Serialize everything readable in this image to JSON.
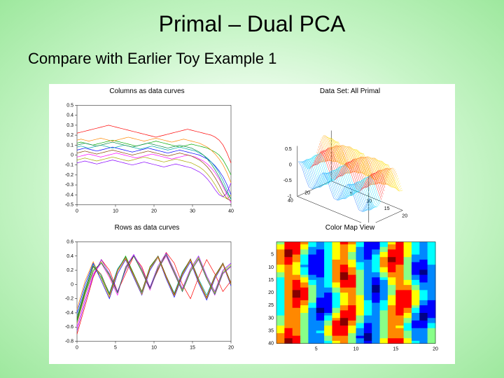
{
  "title": "Primal – Dual PCA",
  "subtitle": "Compare with Earlier Toy Example 1",
  "background": {
    "gradient_center": "#ffffff",
    "gradient_mid": "#c8f5c8",
    "gradient_edge": "#9ee89e"
  },
  "panels": {
    "columns": {
      "title": "Columns as data curves",
      "type": "line",
      "xlim": [
        0,
        40
      ],
      "ylim": [
        -0.5,
        0.5
      ],
      "xticks": [
        0,
        10,
        20,
        30,
        40
      ],
      "yticks": [
        -0.5,
        -0.4,
        -0.3,
        -0.2,
        -0.1,
        0,
        0.1,
        0.2,
        0.3,
        0.4,
        0.5
      ],
      "line_colors": [
        "#ff0000",
        "#00aa00",
        "#0000ff",
        "#ff00ff",
        "#00aaaa",
        "#aaaa00",
        "#ff8800",
        "#8800ff",
        "#884400",
        "#008844",
        "#cc0044",
        "#4400cc",
        "#00cc88",
        "#cc8800",
        "#666666",
        "#aa00aa",
        "#0088cc",
        "#88cc00",
        "#cc4400",
        "#4488cc"
      ],
      "line_width": 0.7,
      "series": [
        [
          0.22,
          0.23,
          0.24,
          0.25,
          0.26,
          0.27,
          0.28,
          0.29,
          0.3,
          0.29,
          0.28,
          0.27,
          0.26,
          0.25,
          0.24,
          0.23,
          0.22,
          0.21,
          0.2,
          0.19,
          0.18,
          0.19,
          0.2,
          0.21,
          0.22,
          0.23,
          0.24,
          0.25,
          0.26,
          0.25,
          0.24,
          0.23,
          0.22,
          0.21,
          0.2,
          0.18,
          0.15,
          0.1,
          0.02,
          -0.08
        ],
        [
          0.12,
          0.13,
          0.12,
          0.11,
          0.1,
          0.11,
          0.12,
          0.13,
          0.14,
          0.15,
          0.14,
          0.13,
          0.12,
          0.11,
          0.1,
          0.09,
          0.1,
          0.11,
          0.12,
          0.13,
          0.14,
          0.13,
          0.12,
          0.11,
          0.1,
          0.09,
          0.08,
          0.09,
          0.1,
          0.11,
          0.1,
          0.09,
          0.08,
          0.07,
          0.05,
          0.03,
          0.0,
          -0.05,
          -0.12,
          -0.2
        ],
        [
          0.05,
          0.06,
          0.07,
          0.06,
          0.05,
          0.04,
          0.05,
          0.06,
          0.07,
          0.08,
          0.07,
          0.06,
          0.05,
          0.04,
          0.03,
          0.04,
          0.05,
          0.06,
          0.07,
          0.06,
          0.05,
          0.04,
          0.03,
          0.02,
          0.03,
          0.04,
          0.05,
          0.04,
          0.03,
          0.02,
          0.01,
          0.0,
          -0.02,
          -0.04,
          -0.07,
          -0.11,
          -0.16,
          -0.22,
          -0.3,
          -0.4
        ],
        [
          -0.02,
          -0.01,
          0.0,
          0.01,
          0.0,
          -0.01,
          -0.02,
          -0.01,
          0.0,
          0.01,
          0.02,
          0.01,
          0.0,
          -0.01,
          -0.02,
          -0.03,
          -0.02,
          -0.01,
          0.0,
          0.01,
          0.0,
          -0.01,
          -0.02,
          -0.03,
          -0.04,
          -0.03,
          -0.02,
          -0.01,
          0.0,
          -0.01,
          -0.02,
          -0.04,
          -0.06,
          -0.09,
          -0.13,
          -0.18,
          -0.24,
          -0.32,
          -0.4,
          -0.48
        ],
        [
          0.08,
          0.09,
          0.08,
          0.07,
          0.08,
          0.09,
          0.1,
          0.09,
          0.08,
          0.07,
          0.08,
          0.09,
          0.1,
          0.09,
          0.08,
          0.07,
          0.06,
          0.07,
          0.08,
          0.09,
          0.08,
          0.07,
          0.06,
          0.05,
          0.06,
          0.07,
          0.08,
          0.07,
          0.06,
          0.05,
          0.04,
          0.02,
          0.0,
          -0.03,
          -0.07,
          -0.12,
          -0.18,
          -0.26,
          -0.35,
          -0.45
        ],
        [
          -0.05,
          -0.04,
          -0.03,
          -0.04,
          -0.05,
          -0.06,
          -0.05,
          -0.04,
          -0.03,
          -0.02,
          -0.03,
          -0.04,
          -0.05,
          -0.06,
          -0.05,
          -0.04,
          -0.03,
          -0.02,
          -0.03,
          -0.04,
          -0.05,
          -0.06,
          -0.07,
          -0.06,
          -0.05,
          -0.04,
          -0.05,
          -0.06,
          -0.07,
          -0.08,
          -0.1,
          -0.12,
          -0.15,
          -0.19,
          -0.24,
          -0.3,
          -0.37,
          -0.42,
          -0.44,
          -0.4
        ],
        [
          0.15,
          0.16,
          0.15,
          0.14,
          0.15,
          0.16,
          0.17,
          0.16,
          0.15,
          0.14,
          0.15,
          0.16,
          0.17,
          0.18,
          0.17,
          0.16,
          0.15,
          0.14,
          0.15,
          0.16,
          0.17,
          0.16,
          0.15,
          0.14,
          0.13,
          0.14,
          0.15,
          0.16,
          0.15,
          0.14,
          0.13,
          0.12,
          0.1,
          0.08,
          0.05,
          0.01,
          -0.04,
          -0.1,
          -0.18,
          -0.28
        ],
        [
          -0.08,
          -0.07,
          -0.06,
          -0.07,
          -0.08,
          -0.09,
          -0.08,
          -0.07,
          -0.06,
          -0.05,
          -0.06,
          -0.07,
          -0.08,
          -0.09,
          -0.1,
          -0.09,
          -0.08,
          -0.07,
          -0.08,
          -0.09,
          -0.1,
          -0.11,
          -0.12,
          -0.11,
          -0.1,
          -0.09,
          -0.1,
          -0.11,
          -0.12,
          -0.13,
          -0.15,
          -0.17,
          -0.2,
          -0.24,
          -0.29,
          -0.35,
          -0.4,
          -0.42,
          -0.38,
          -0.28
        ],
        [
          0.02,
          0.03,
          0.04,
          0.03,
          0.02,
          0.01,
          0.02,
          0.03,
          0.04,
          0.05,
          0.04,
          0.03,
          0.02,
          0.01,
          0.0,
          0.01,
          0.02,
          0.03,
          0.04,
          0.03,
          0.02,
          0.01,
          0.0,
          -0.01,
          0.0,
          0.01,
          0.02,
          0.01,
          0.0,
          -0.01,
          -0.03,
          -0.05,
          -0.08,
          -0.12,
          -0.17,
          -0.23,
          -0.3,
          -0.38,
          -0.44,
          -0.46
        ],
        [
          0.1,
          0.11,
          0.12,
          0.11,
          0.1,
          0.09,
          0.1,
          0.11,
          0.12,
          0.13,
          0.12,
          0.11,
          0.1,
          0.09,
          0.08,
          0.09,
          0.1,
          0.11,
          0.12,
          0.11,
          0.1,
          0.09,
          0.08,
          0.07,
          0.08,
          0.09,
          0.1,
          0.09,
          0.08,
          0.07,
          0.05,
          0.03,
          0.0,
          -0.04,
          -0.09,
          -0.15,
          -0.22,
          -0.3,
          -0.38,
          -0.44
        ]
      ]
    },
    "primal3d": {
      "title": "Data Set: All Primal",
      "type": "surface3d",
      "zticks": [
        -1,
        -0.5,
        0,
        0.5
      ],
      "xticks": [
        5,
        10,
        15,
        20
      ],
      "yticks": [
        20,
        40
      ],
      "surface_colors": [
        "#ffdd00",
        "#ffaa00",
        "#ff6600",
        "#ff0000",
        "#00ddff",
        "#00aaff",
        "#0066ff"
      ],
      "line_width": 0.4
    },
    "rows": {
      "title": "Rows as data curves",
      "type": "line",
      "xlim": [
        0,
        20
      ],
      "ylim": [
        -0.8,
        0.6
      ],
      "xticks": [
        0,
        5,
        10,
        15,
        20
      ],
      "yticks": [
        -0.8,
        -0.6,
        -0.4,
        -0.2,
        0,
        0.2,
        0.4,
        0.6
      ],
      "line_colors": [
        "#ff0000",
        "#00aa00",
        "#0000ff",
        "#ff00ff",
        "#00aaaa",
        "#aaaa00",
        "#ff8800",
        "#8800ff",
        "#884400",
        "#008844",
        "#cc0044",
        "#4400cc",
        "#00cc88",
        "#cc8800",
        "#666666",
        "#aa00aa",
        "#0088cc",
        "#88cc00",
        "#cc4400",
        "#4488cc"
      ],
      "line_width": 0.7,
      "series": [
        [
          -0.7,
          -0.3,
          0.1,
          0.35,
          0.2,
          -0.1,
          0.15,
          0.4,
          0.25,
          -0.05,
          0.2,
          0.45,
          0.3,
          0.0,
          -0.2,
          0.1,
          0.35,
          0.15,
          -0.1,
          0.05
        ],
        [
          -0.5,
          -0.1,
          0.25,
          0.1,
          -0.15,
          0.2,
          0.4,
          0.15,
          -0.1,
          0.25,
          0.4,
          0.1,
          -0.15,
          0.15,
          0.35,
          0.05,
          -0.2,
          0.1,
          0.3,
          0.0
        ],
        [
          -0.4,
          0.0,
          0.3,
          0.05,
          -0.2,
          0.15,
          0.35,
          0.1,
          -0.15,
          0.2,
          0.38,
          0.08,
          -0.18,
          0.12,
          0.32,
          0.02,
          -0.22,
          0.08,
          0.28,
          -0.02
        ],
        [
          -0.6,
          -0.2,
          0.15,
          0.3,
          0.1,
          -0.15,
          0.25,
          0.42,
          0.18,
          -0.08,
          0.22,
          0.4,
          0.15,
          -0.1,
          0.18,
          0.35,
          0.08,
          -0.15,
          0.15,
          0.25
        ],
        [
          -0.45,
          -0.05,
          0.28,
          0.12,
          -0.12,
          0.22,
          0.38,
          0.12,
          -0.12,
          0.22,
          0.4,
          0.12,
          -0.12,
          0.18,
          0.35,
          0.08,
          -0.15,
          0.12,
          0.3,
          0.02
        ],
        [
          -0.55,
          -0.15,
          0.18,
          0.32,
          0.12,
          -0.12,
          0.22,
          0.4,
          0.2,
          -0.06,
          0.24,
          0.42,
          0.18,
          -0.08,
          0.2,
          0.38,
          0.1,
          -0.12,
          0.18,
          0.28
        ],
        [
          -0.35,
          0.05,
          0.32,
          0.08,
          -0.18,
          0.18,
          0.36,
          0.12,
          -0.14,
          0.22,
          0.38,
          0.1,
          -0.16,
          0.14,
          0.34,
          0.04,
          -0.2,
          0.1,
          0.28,
          0.0
        ],
        [
          -0.65,
          -0.25,
          0.12,
          0.35,
          0.15,
          -0.1,
          0.2,
          0.42,
          0.22,
          -0.04,
          0.26,
          0.44,
          0.2,
          -0.06,
          0.22,
          0.4,
          0.12,
          -0.1,
          0.2,
          0.3
        ],
        [
          -0.48,
          -0.08,
          0.26,
          0.14,
          -0.14,
          0.2,
          0.38,
          0.14,
          -0.1,
          0.24,
          0.4,
          0.12,
          -0.14,
          0.16,
          0.36,
          0.06,
          -0.18,
          0.12,
          0.3,
          0.02
        ],
        [
          -0.52,
          -0.12,
          0.2,
          0.3,
          0.14,
          -0.12,
          0.24,
          0.4,
          0.18,
          -0.06,
          0.22,
          0.42,
          0.16,
          -0.1,
          0.18,
          0.36,
          0.08,
          -0.14,
          0.16,
          0.26
        ]
      ]
    },
    "colormap": {
      "title": "Color Map View",
      "type": "heatmap",
      "xlim": [
        0,
        20
      ],
      "ylim": [
        0,
        40
      ],
      "xticks": [
        5,
        10,
        15,
        20
      ],
      "yticks": [
        5,
        10,
        15,
        20,
        25,
        30,
        35,
        40
      ],
      "cols": 20,
      "rows": 40,
      "palette": [
        "#000088",
        "#0000ff",
        "#0088ff",
        "#00ffff",
        "#88ff88",
        "#ffff00",
        "#ff8800",
        "#ff0000",
        "#880000"
      ]
    }
  }
}
